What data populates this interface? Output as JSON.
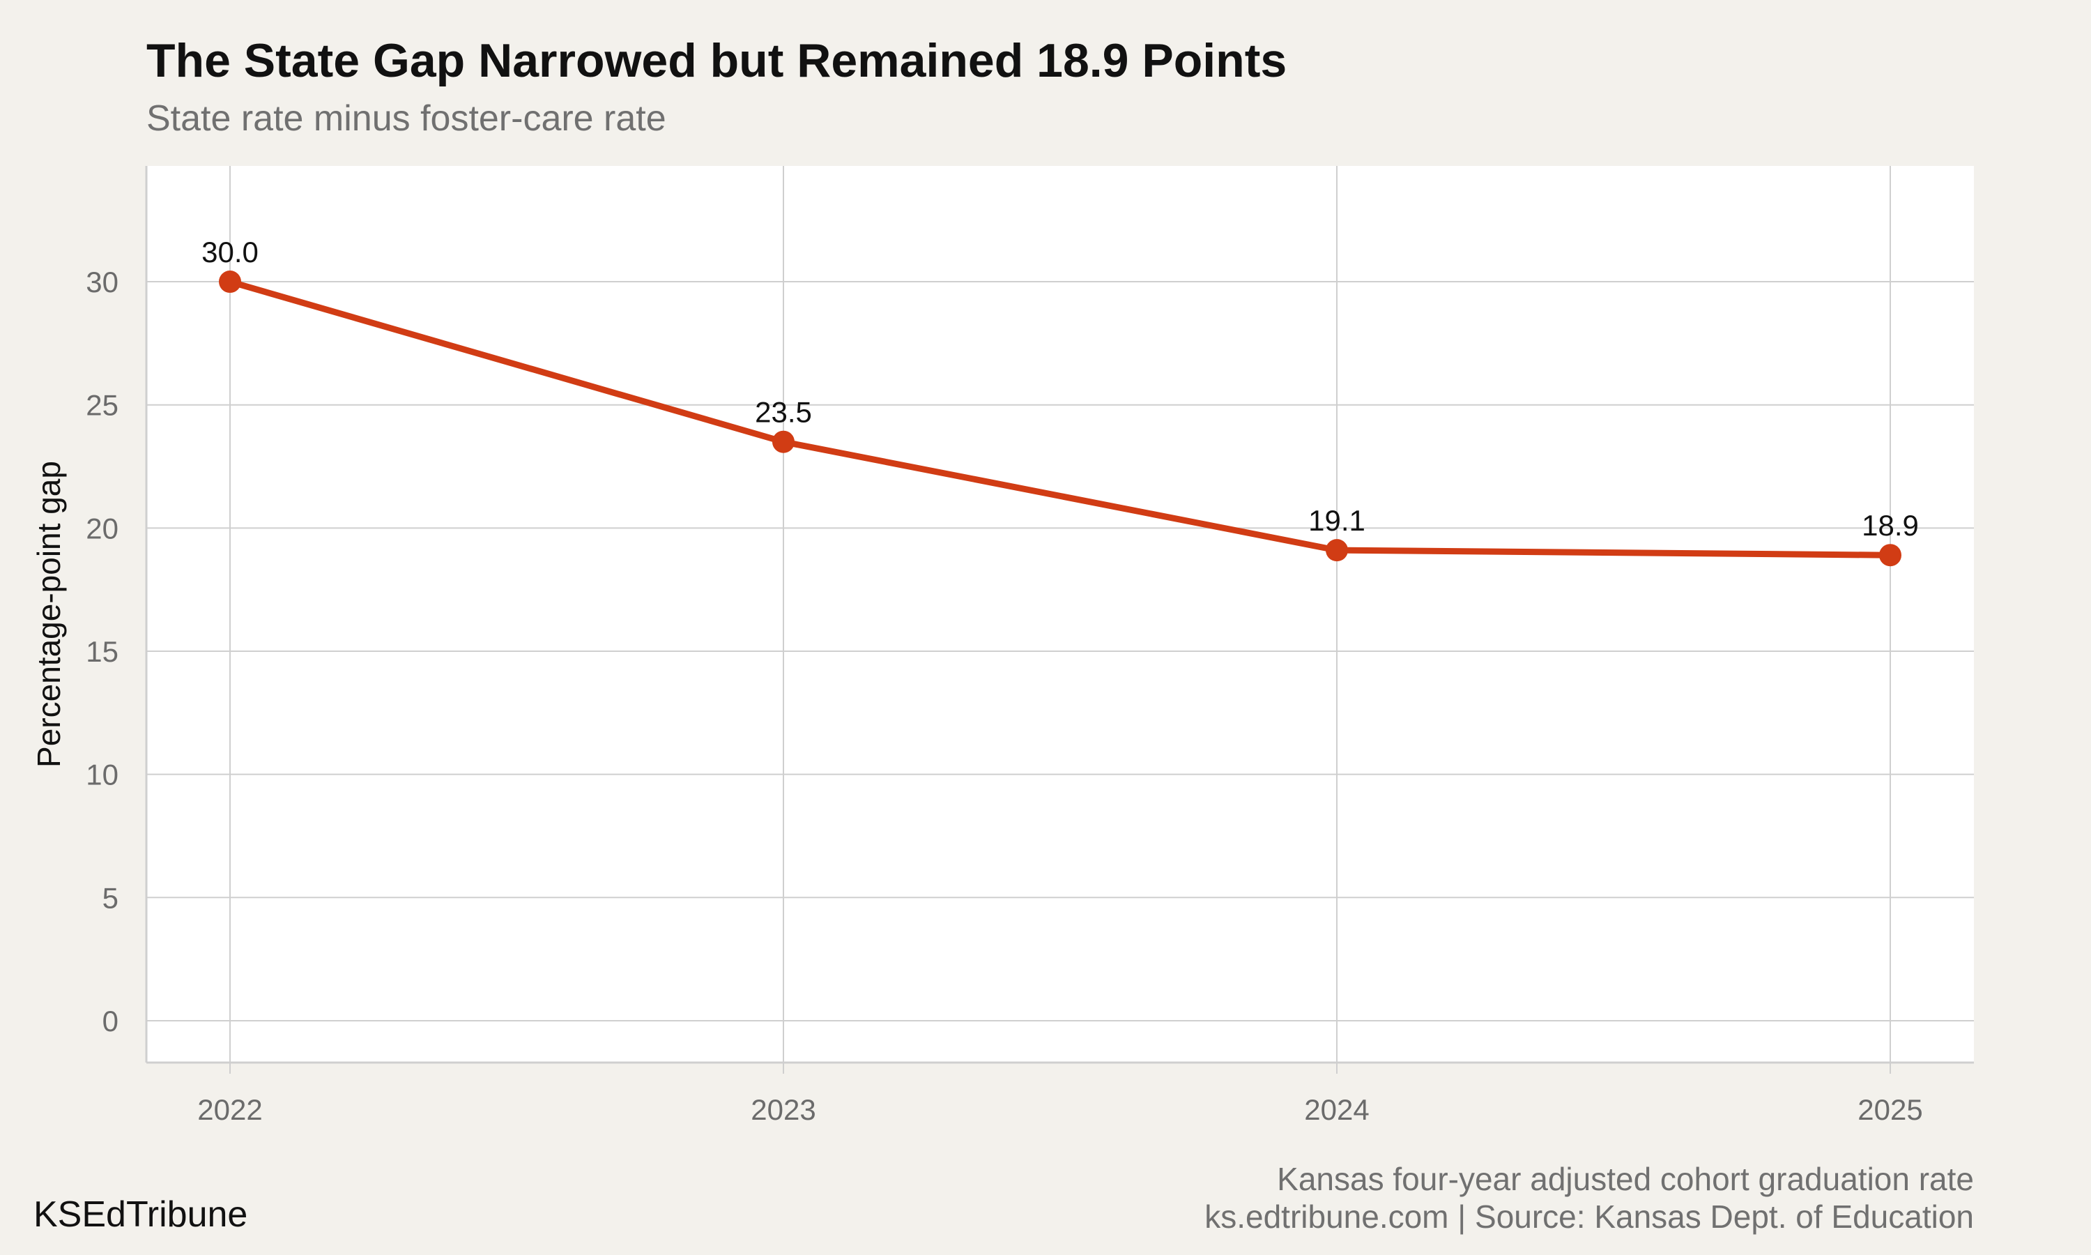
{
  "header": {
    "title": "The State Gap Narrowed but Remained 18.9 Points",
    "subtitle": "State rate minus foster-care rate"
  },
  "footer": {
    "brand": "KSEdTribune",
    "caption_line1": "Kansas four-year adjusted cohort graduation rate",
    "caption_line2": "ks.edtribune.com | Source: Kansas Dept. of Education"
  },
  "colors": {
    "background": "#f3f1ec",
    "panel": "#ffffff",
    "grid": "#cfcfcf",
    "series": "#d13c14",
    "axis_text": "#6b6b6b",
    "label_text": "#111111"
  },
  "chart_data": {
    "type": "line",
    "title": "The State Gap Narrowed but Remained 18.9 Points",
    "subtitle": "State rate minus foster-care rate",
    "xlabel": "",
    "ylabel": "Percentage-point gap",
    "x": [
      "2022",
      "2023",
      "2024",
      "2025"
    ],
    "series": [
      {
        "values": [
          30.0,
          23.5,
          19.1,
          18.9
        ],
        "labels": [
          "30.0",
          "23.5",
          "19.1",
          "18.9"
        ]
      }
    ],
    "ylim": [
      -1.7,
      34.7
    ],
    "yticks": [
      0,
      5,
      10,
      15,
      20,
      25,
      30
    ],
    "ytick_labels": [
      "0",
      "5",
      "10",
      "15",
      "20",
      "25",
      "30"
    ],
    "grid": true,
    "markers": true,
    "data_labels": true,
    "legend": "none"
  }
}
